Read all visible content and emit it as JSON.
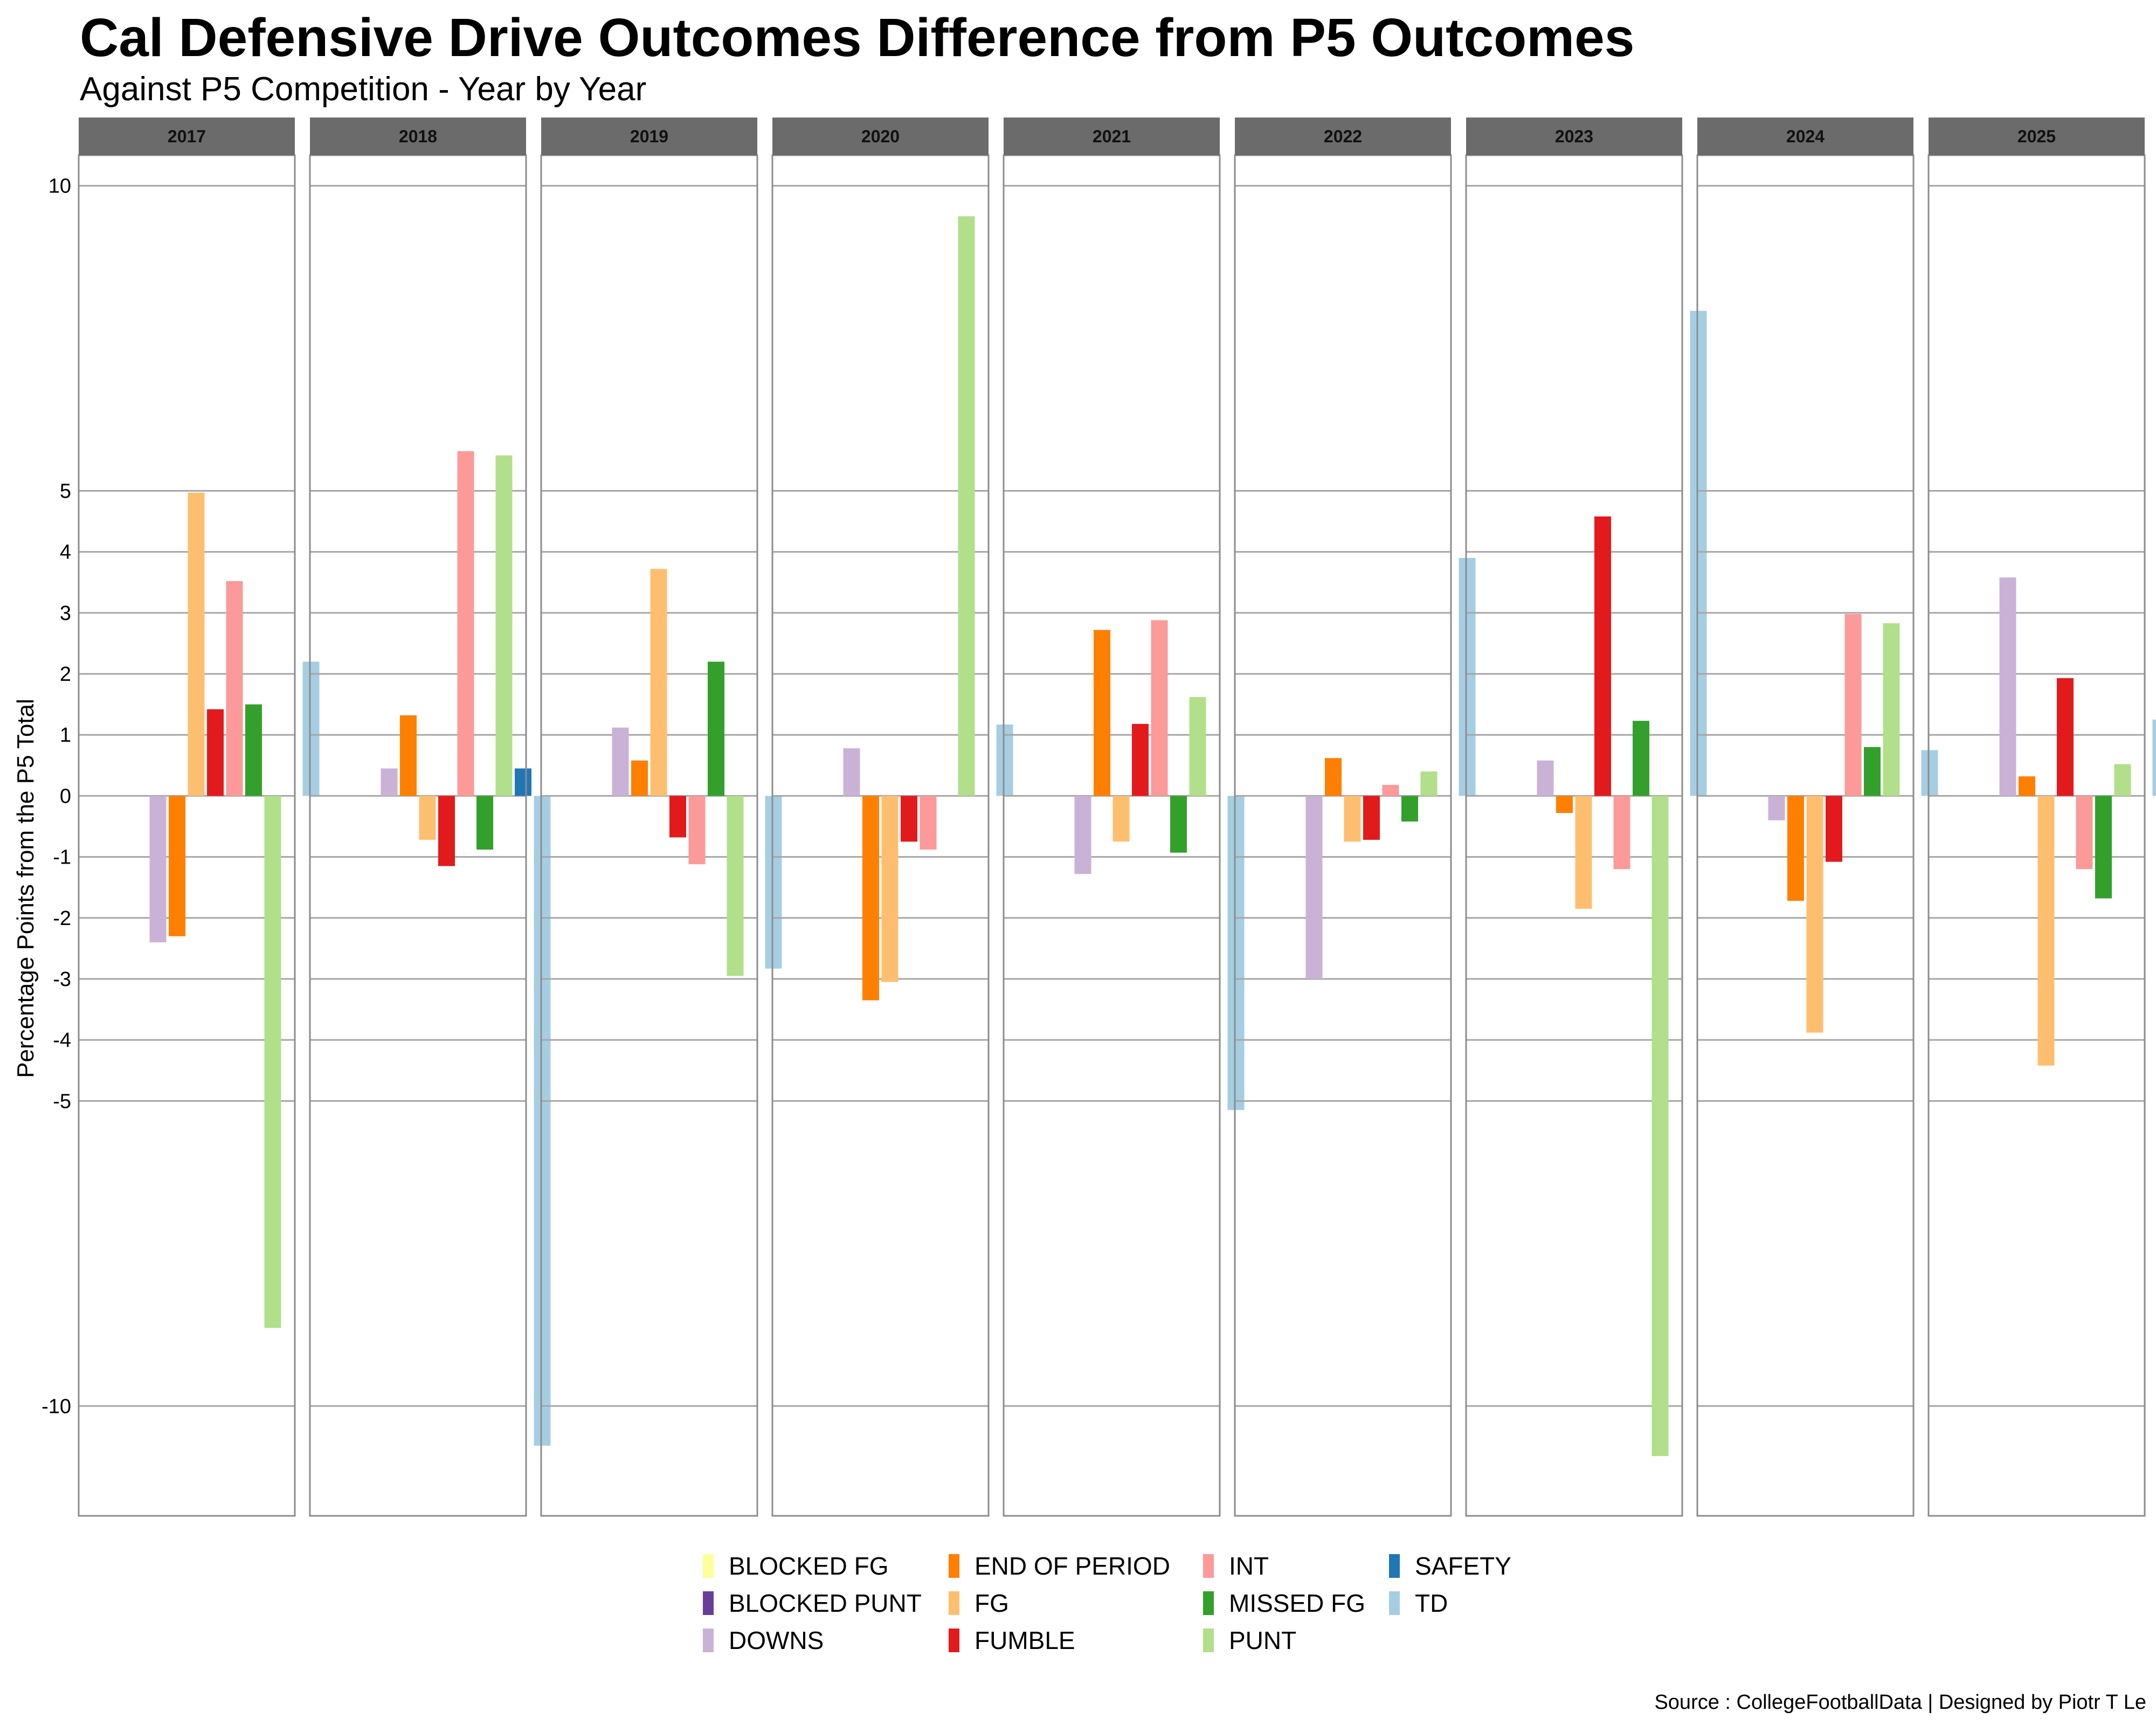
{
  "chart_data": {
    "type": "bar",
    "title": "Cal Defensive Drive Outcomes Difference from P5 Outcomes",
    "subtitle": "Against P5 Competition - Year by Year",
    "ylabel": "Percentage Points from the P5 Total",
    "caption": "Source : CollegeFootballData | Designed by Piotr T Le",
    "ylim": [
      -11.8,
      10.5
    ],
    "yticks": [
      10,
      5,
      4,
      3,
      2,
      1,
      0,
      -1,
      -2,
      -3,
      -4,
      -5,
      -10
    ],
    "grid": true,
    "legend_position": "bottom",
    "facets": [
      "2017",
      "2018",
      "2019",
      "2020",
      "2021",
      "2022",
      "2023",
      "2024",
      "2025"
    ],
    "series": [
      {
        "name": "BLOCKED FG",
        "color": "#FFFF99",
        "values": [
          null,
          null,
          null,
          null,
          null,
          null,
          null,
          null,
          null
        ]
      },
      {
        "name": "BLOCKED PUNT",
        "color": "#6A3D9A",
        "values": [
          null,
          null,
          null,
          null,
          null,
          null,
          null,
          null,
          null
        ]
      },
      {
        "name": "DOWNS",
        "color": "#CAB2D6",
        "values": [
          -2.4,
          0.45,
          1.12,
          0.78,
          -1.28,
          -3.0,
          0.58,
          -0.4,
          3.58
        ]
      },
      {
        "name": "END OF PERIOD",
        "color": "#FF7F00",
        "values": [
          -2.3,
          1.32,
          0.58,
          -3.35,
          2.72,
          0.62,
          -0.28,
          -1.72,
          0.32
        ]
      },
      {
        "name": "FG",
        "color": "#FDBF6F",
        "values": [
          4.97,
          -0.72,
          3.72,
          -3.05,
          -0.75,
          -0.75,
          -1.85,
          -3.88,
          -4.42
        ]
      },
      {
        "name": "FUMBLE",
        "color": "#E31A1C",
        "values": [
          1.42,
          -1.15,
          -0.68,
          -0.75,
          1.18,
          -0.72,
          4.58,
          -1.08,
          1.93
        ]
      },
      {
        "name": "INT",
        "color": "#FB9A99",
        "values": [
          3.52,
          5.65,
          -1.12,
          -0.88,
          2.88,
          0.18,
          -1.2,
          2.98,
          -1.2
        ]
      },
      {
        "name": "MISSED FG",
        "color": "#33A02C",
        "values": [
          1.5,
          -0.88,
          2.2,
          null,
          -0.93,
          -0.42,
          1.23,
          0.8,
          -1.68
        ]
      },
      {
        "name": "PUNT",
        "color": "#B2DF8A",
        "values": [
          -8.72,
          5.58,
          -2.95,
          9.5,
          1.62,
          0.4,
          -10.82,
          2.83,
          0.52
        ]
      },
      {
        "name": "SAFETY",
        "color": "#1F78B4",
        "values": [
          null,
          0.45,
          null,
          null,
          null,
          null,
          null,
          null,
          null
        ]
      },
      {
        "name": "TD",
        "color": "#A6CEE3",
        "values": [
          2.2,
          -10.65,
          -2.83,
          1.17,
          -5.15,
          3.9,
          7.95,
          0.75,
          1.25
        ]
      }
    ]
  }
}
